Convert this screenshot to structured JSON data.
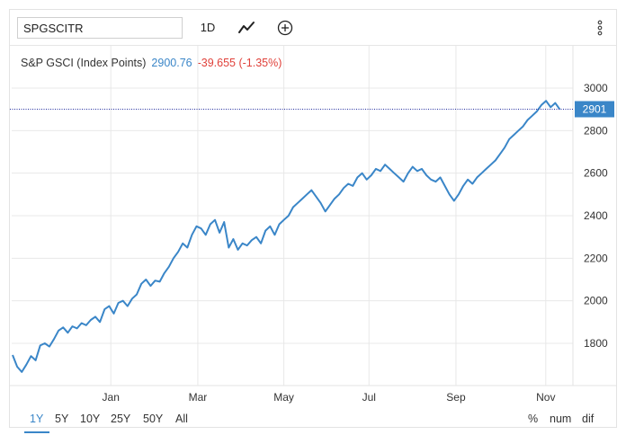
{
  "toolbar": {
    "symbol_value": "SPGSCITR",
    "interval_label": "1D",
    "chart_type_icon": "line-chart-icon",
    "add_icon": "plus-circle-icon",
    "menu_icon": "vertical-dots-icon"
  },
  "legend": {
    "name": "S&P GSCI (Index Points)",
    "price": "2900.76",
    "change": "-39.655 (-1.35%)"
  },
  "ranges": [
    "1Y",
    "5Y",
    "10Y",
    "25Y",
    "50Y",
    "All"
  ],
  "active_range": "1Y",
  "modes": [
    "%",
    "num",
    "dif"
  ],
  "colors": {
    "line": "#3a86c8",
    "price": "#3a86c8",
    "change": "#e0413a",
    "grid": "#e8e8e8",
    "last_line": "#1f2a9e"
  },
  "chart_data": {
    "type": "line",
    "title": "",
    "xlabel": "",
    "ylabel": "",
    "ylim": [
      1650,
      3070
    ],
    "y_ticks": [
      1800,
      2000,
      2200,
      2400,
      2600,
      2800,
      3000
    ],
    "x_range_weeks": [
      0,
      60
    ],
    "x_ticks": [
      {
        "label": "Jan",
        "week": 10.5
      },
      {
        "label": "Mar",
        "week": 19.8
      },
      {
        "label": "May",
        "week": 29.0
      },
      {
        "label": "Jul",
        "week": 38.1
      },
      {
        "label": "Sep",
        "week": 47.4
      },
      {
        "label": "Nov",
        "week": 57.0
      }
    ],
    "last_value_label": "2901",
    "last_value": 2900.76,
    "series": [
      {
        "values": [
          1745,
          1690,
          1665,
          1700,
          1740,
          1720,
          1790,
          1800,
          1785,
          1820,
          1860,
          1875,
          1850,
          1880,
          1870,
          1895,
          1885,
          1910,
          1925,
          1900,
          1960,
          1975,
          1940,
          1990,
          2000,
          1975,
          2010,
          2030,
          2080,
          2100,
          2070,
          2095,
          2090,
          2130,
          2160,
          2200,
          2230,
          2270,
          2250,
          2310,
          2350,
          2340,
          2310,
          2360,
          2380,
          2320,
          2370,
          2250,
          2290,
          2240,
          2270,
          2260,
          2285,
          2300,
          2270,
          2330,
          2350,
          2310,
          2360,
          2380,
          2400,
          2440,
          2460,
          2480,
          2500,
          2520,
          2490,
          2460,
          2420,
          2450,
          2480,
          2500,
          2530,
          2550,
          2540,
          2580,
          2600,
          2570,
          2590,
          2620,
          2610,
          2640,
          2620,
          2600,
          2580,
          2560,
          2600,
          2630,
          2610,
          2620,
          2590,
          2570,
          2560,
          2580,
          2540,
          2500,
          2470,
          2500,
          2540,
          2570,
          2550,
          2580,
          2600,
          2620,
          2640,
          2660,
          2690,
          2720,
          2760,
          2780,
          2800,
          2820,
          2850,
          2870,
          2890,
          2920,
          2940,
          2910,
          2930,
          2900
        ],
        "start_week": 0,
        "end_week": 58.5
      }
    ]
  }
}
